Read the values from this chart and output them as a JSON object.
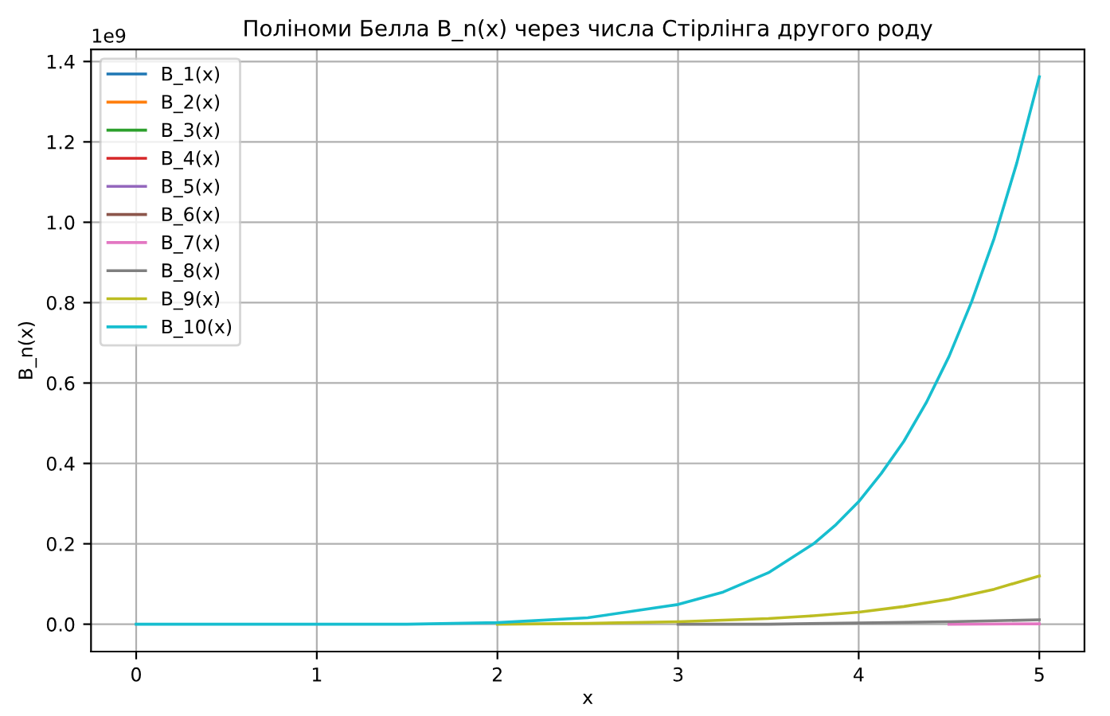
{
  "chart_data": {
    "type": "line",
    "title": "Поліноми Белла B_n(x) через числа Стірлінга другого роду",
    "xlabel": "x",
    "ylabel": "B_n(x)",
    "annotations": [
      "1e9"
    ],
    "xlim": [
      -0.25,
      5.25
    ],
    "xticks": [
      0,
      1,
      2,
      3,
      4,
      5
    ],
    "ylim": [
      -0.0681,
      1.4301
    ],
    "yticks": [
      {
        "value": 0,
        "label": "0.0"
      },
      0.2,
      0.4,
      0.6,
      0.8,
      {
        "value": 1,
        "label": "1.0"
      },
      1.2,
      1.4
    ],
    "grid": true,
    "legend": "top left",
    "line_style": "solid",
    "marker": "none",
    "series": [
      {
        "name": "B_1(x)",
        "color": "#1f77b4"
      },
      {
        "name": "B_2(x)",
        "color": "#ff7f0e"
      },
      {
        "name": "B_3(x)",
        "color": "#2ca02c"
      },
      {
        "name": "B_4(x)",
        "color": "#d62728"
      },
      {
        "name": "B_5(x)",
        "color": "#9467bd"
      },
      {
        "name": "B_6(x)",
        "color": "#8c564b"
      },
      {
        "name": "B_7(x)",
        "color": "#e377c2",
        "x": [
          4.5,
          5
        ],
        "values": [
          0,
          0.001
        ]
      },
      {
        "name": "B_8(x)",
        "color": "#7f7f7f",
        "x": [
          3,
          3.5,
          4,
          4.5,
          5
        ],
        "values": [
          0,
          0,
          0.003,
          0.006,
          0.011
        ]
      },
      {
        "name": "B_9(x)",
        "color": "#bcbd22",
        "x": [
          2,
          2.5,
          3,
          3.5,
          3.75,
          4,
          4.25,
          4.5,
          4.75,
          5
        ],
        "values": [
          0,
          0.002,
          0.006,
          0.014,
          0.021,
          0.03,
          0.044,
          0.062,
          0.087,
          0.12
        ]
      },
      {
        "name": "B_10(x)",
        "color": "#17becf",
        "x": [
          0,
          1,
          1.5,
          2,
          2.5,
          3,
          3.25,
          3.5,
          3.75,
          3.875,
          4,
          4.125,
          4.25,
          4.375,
          4.5,
          4.625,
          4.75,
          4.875,
          5
        ],
        "values": [
          0,
          0,
          0,
          0.004,
          0.016,
          0.049,
          0.08,
          0.128,
          0.2,
          0.248,
          0.305,
          0.375,
          0.455,
          0.552,
          0.666,
          0.802,
          0.96,
          1.147,
          1.362
        ]
      }
    ]
  }
}
